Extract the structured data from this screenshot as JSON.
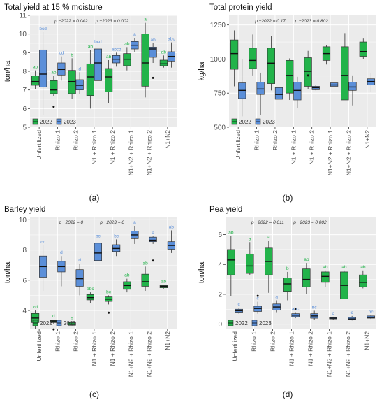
{
  "figure": {
    "colors": {
      "y2022": "#22b34a",
      "y2023": "#5b8fd9",
      "panel_bg": "#ebebeb",
      "grid": "#ffffff"
    },
    "legend": {
      "y2022": "2022",
      "y2023": "2023"
    },
    "categories": [
      "Unfertilized",
      "Rhizo 1",
      "Rhizo 2",
      "N1 + Rhizo 1",
      "N1 + Rhizo 2",
      "N1+N2 + Rhizo 1",
      "N1+N2 + Rhizo 2",
      "N1+N2"
    ]
  },
  "chart_data": [
    {
      "type": "box",
      "title": "Total yield at 15 % moisture",
      "ylabel": "ton/ha",
      "panel_label": "(a)",
      "ylim": [
        5,
        11
      ],
      "yticks": [
        5,
        6,
        7,
        8,
        9,
        10,
        11
      ],
      "pvalues": {
        "p2022": "p −2022 = 0.042",
        "p2023": "p −2023 = 0.002"
      },
      "series": [
        {
          "name": "2022",
          "boxes": [
            {
              "min": 7.05,
              "q1": 7.25,
              "median": 7.45,
              "q3": 7.75,
              "max": 8.05,
              "outliers": [],
              "letter": "ab"
            },
            {
              "min": 6.65,
              "q1": 6.8,
              "median": 7.0,
              "q3": 7.5,
              "max": 7.75,
              "outliers": [
                6.1
              ],
              "letter": "ab"
            },
            {
              "min": 6.5,
              "q1": 6.8,
              "median": 7.45,
              "q3": 8.05,
              "max": 8.7,
              "outliers": [],
              "letter": "b"
            },
            {
              "min": 6.0,
              "q1": 6.7,
              "median": 7.7,
              "q3": 8.4,
              "max": 9.15,
              "outliers": [],
              "letter": "ab"
            },
            {
              "min": 6.3,
              "q1": 6.9,
              "median": 7.7,
              "q3": 8.15,
              "max": 8.6,
              "outliers": [],
              "letter": "ab"
            },
            {
              "min": 8.05,
              "q1": 8.3,
              "median": 8.65,
              "q3": 8.95,
              "max": 9.3,
              "outliers": [],
              "letter": "ab"
            },
            {
              "min": 6.6,
              "q1": 7.2,
              "median": 8.45,
              "q3": 10.0,
              "max": 10.6,
              "outliers": [],
              "letter": "a"
            },
            {
              "min": 8.2,
              "q1": 8.3,
              "median": 8.4,
              "q3": 8.6,
              "max": 8.85,
              "outliers": [],
              "letter": "ab"
            }
          ]
        },
        {
          "name": "2023",
          "boxes": [
            {
              "min": 5.65,
              "q1": 7.15,
              "median": 7.85,
              "q3": 9.15,
              "max": 10.1,
              "outliers": [],
              "letter": "bcd"
            },
            {
              "min": 7.5,
              "q1": 7.8,
              "median": 8.1,
              "q3": 8.45,
              "max": 8.8,
              "outliers": [],
              "letter": "cd"
            },
            {
              "min": 6.8,
              "q1": 7.0,
              "median": 7.25,
              "q3": 7.55,
              "max": 7.95,
              "outliers": [],
              "letter": "d"
            },
            {
              "min": 7.2,
              "q1": 7.5,
              "median": 8.45,
              "q3": 9.2,
              "max": 9.4,
              "outliers": [],
              "letter": "bcd"
            },
            {
              "min": 8.25,
              "q1": 8.45,
              "median": 8.65,
              "q3": 8.85,
              "max": 9.0,
              "outliers": [],
              "letter": "abcd"
            },
            {
              "min": 9.05,
              "q1": 9.2,
              "median": 9.4,
              "q3": 9.6,
              "max": 9.8,
              "outliers": [],
              "letter": "a"
            },
            {
              "min": 8.45,
              "q1": 8.75,
              "median": 9.2,
              "q3": 9.3,
              "max": 9.5,
              "outliers": [
                7.65
              ],
              "letter": "ab"
            },
            {
              "min": 8.2,
              "q1": 8.55,
              "median": 8.8,
              "q3": 9.05,
              "max": 9.55,
              "outliers": [],
              "letter": "abc"
            }
          ]
        }
      ]
    },
    {
      "type": "box",
      "title": "Total protein yield",
      "ylabel": "kg/ha",
      "panel_label": "(b)",
      "ylim": [
        500,
        1320
      ],
      "yticks": [
        500,
        750,
        1000,
        1250
      ],
      "pvalues": {
        "p2022": "p −2022 = 0.17",
        "p2023": "p −2023 = 0.802"
      },
      "series": [
        {
          "name": "2022",
          "boxes": [
            {
              "min": 800,
              "q1": 925,
              "median": 1040,
              "q3": 1140,
              "max": 1210,
              "outliers": [],
              "letter": ""
            },
            {
              "min": 880,
              "q1": 930,
              "median": 990,
              "q3": 1080,
              "max": 1180,
              "outliers": [],
              "letter": ""
            },
            {
              "min": 770,
              "q1": 820,
              "median": 970,
              "q3": 1080,
              "max": 1170,
              "outliers": [],
              "letter": ""
            },
            {
              "min": 700,
              "q1": 750,
              "median": 880,
              "q3": 990,
              "max": 1005,
              "outliers": [],
              "letter": ""
            },
            {
              "min": 780,
              "q1": 800,
              "median": 910,
              "q3": 1010,
              "max": 1060,
              "outliers": [
                880
              ],
              "letter": ""
            },
            {
              "min": 960,
              "q1": 990,
              "median": 1040,
              "q3": 1090,
              "max": 1100,
              "outliers": [],
              "letter": ""
            },
            {
              "min": 700,
              "q1": 700,
              "median": 880,
              "q3": 1090,
              "max": 1190,
              "outliers": [],
              "letter": ""
            },
            {
              "min": 1000,
              "q1": 1020,
              "median": 1055,
              "q3": 1125,
              "max": 1150,
              "outliers": [],
              "letter": ""
            }
          ]
        },
        {
          "name": "2023",
          "boxes": [
            {
              "min": 580,
              "q1": 710,
              "median": 770,
              "q3": 825,
              "max": 1000,
              "outliers": [],
              "letter": ""
            },
            {
              "min": 590,
              "q1": 740,
              "median": 780,
              "q3": 830,
              "max": 900,
              "outliers": [],
              "letter": ""
            },
            {
              "min": 690,
              "q1": 705,
              "median": 740,
              "q3": 790,
              "max": 850,
              "outliers": [],
              "letter": ""
            },
            {
              "min": 640,
              "q1": 700,
              "median": 770,
              "q3": 830,
              "max": 870,
              "outliers": [],
              "letter": ""
            },
            {
              "min": 770,
              "q1": 775,
              "median": 790,
              "q3": 800,
              "max": 810,
              "outliers": [],
              "letter": ""
            },
            {
              "min": 795,
              "q1": 800,
              "median": 810,
              "q3": 825,
              "max": 830,
              "outliers": [],
              "letter": ""
            },
            {
              "min": 660,
              "q1": 770,
              "median": 795,
              "q3": 830,
              "max": 880,
              "outliers": [],
              "letter": ""
            },
            {
              "min": 760,
              "q1": 810,
              "median": 835,
              "q3": 855,
              "max": 900,
              "outliers": [],
              "letter": ""
            }
          ]
        }
      ]
    },
    {
      "type": "box",
      "title": "Barley yield",
      "ylabel": "ton/ha",
      "panel_label": "(c)",
      "ylim": [
        2.8,
        10.2
      ],
      "yticks": [
        4,
        6,
        8,
        10
      ],
      "pvalues": {
        "p2022": "p −2022 = 0",
        "p2023": "p −2023 = 0"
      },
      "series": [
        {
          "name": "2022",
          "boxes": [
            {
              "min": 2.8,
              "q1": 3.2,
              "median": 3.5,
              "q3": 3.8,
              "max": 4.0,
              "outliers": [],
              "letter": "cd"
            },
            {
              "min": 3.1,
              "q1": 3.2,
              "median": 3.3,
              "q3": 3.35,
              "max": 3.4,
              "outliers": [
                2.75
              ],
              "letter": "d"
            },
            {
              "min": 3.0,
              "q1": 3.02,
              "median": 3.1,
              "q3": 3.2,
              "max": 3.25,
              "outliers": [],
              "letter": "d"
            },
            {
              "min": 4.5,
              "q1": 4.7,
              "median": 4.85,
              "q3": 5.05,
              "max": 5.2,
              "outliers": [],
              "letter": "abc"
            },
            {
              "min": 4.4,
              "q1": 4.6,
              "median": 4.75,
              "q3": 4.9,
              "max": 5.0,
              "outliers": [
                3.85
              ],
              "letter": "bc"
            },
            {
              "min": 5.2,
              "q1": 5.4,
              "median": 5.65,
              "q3": 5.9,
              "max": 6.1,
              "outliers": [],
              "letter": "ab"
            },
            {
              "min": 5.3,
              "q1": 5.6,
              "median": 5.9,
              "q3": 6.4,
              "max": 6.9,
              "outliers": [],
              "letter": "ab"
            },
            {
              "min": 5.45,
              "q1": 5.5,
              "median": 5.6,
              "q3": 5.65,
              "max": 5.7,
              "outliers": [],
              "letter": "ab"
            }
          ]
        },
        {
          "name": "2023",
          "boxes": [
            {
              "min": 5.3,
              "q1": 6.2,
              "median": 6.9,
              "q3": 7.6,
              "max": 8.3,
              "outliers": [],
              "letter": "cd"
            },
            {
              "min": 5.6,
              "q1": 6.55,
              "median": 6.9,
              "q3": 7.25,
              "max": 7.6,
              "outliers": [],
              "letter": "d"
            },
            {
              "min": 5.0,
              "q1": 5.6,
              "median": 6.1,
              "q3": 6.7,
              "max": 7.1,
              "outliers": [],
              "letter": "d"
            },
            {
              "min": 6.6,
              "q1": 7.3,
              "median": 7.8,
              "q3": 8.45,
              "max": 8.7,
              "outliers": [],
              "letter": "bc"
            },
            {
              "min": 7.6,
              "q1": 7.9,
              "median": 8.1,
              "q3": 8.35,
              "max": 8.7,
              "outliers": [],
              "letter": "bc"
            },
            {
              "min": 8.4,
              "q1": 8.75,
              "median": 9.0,
              "q3": 9.25,
              "max": 9.6,
              "outliers": [],
              "letter": "a"
            },
            {
              "min": 8.4,
              "q1": 8.55,
              "median": 8.65,
              "q3": 8.85,
              "max": 8.9,
              "outliers": [
                7.3
              ],
              "letter": "a"
            },
            {
              "min": 7.8,
              "q1": 8.05,
              "median": 8.3,
              "q3": 8.55,
              "max": 9.3,
              "outliers": [],
              "letter": "ab"
            }
          ]
        }
      ]
    },
    {
      "type": "box",
      "title": "Pea yield",
      "ylabel": "ton/ha",
      "panel_label": "(d)",
      "ylim": [
        -0.3,
        7.2
      ],
      "yticks": [
        0,
        2,
        4,
        6
      ],
      "pvalues": {
        "p2022": "p −2022 = 0.011",
        "p2023": "p −2023 = 0.002"
      },
      "series": [
        {
          "name": "2022",
          "boxes": [
            {
              "min": 1.9,
              "q1": 3.3,
              "median": 4.3,
              "q3": 5.0,
              "max": 5.9,
              "outliers": [],
              "letter": "ab"
            },
            {
              "min": 3.3,
              "q1": 3.4,
              "median": 3.9,
              "q3": 4.7,
              "max": 5.5,
              "outliers": [],
              "letter": "a"
            },
            {
              "min": 2.1,
              "q1": 3.3,
              "median": 4.2,
              "q3": 5.1,
              "max": 5.6,
              "outliers": [],
              "letter": "a"
            },
            {
              "min": 1.6,
              "q1": 2.2,
              "median": 2.7,
              "q3": 3.1,
              "max": 3.5,
              "outliers": [],
              "letter": "b"
            },
            {
              "min": 2.0,
              "q1": 2.5,
              "median": 3.0,
              "q3": 3.7,
              "max": 4.1,
              "outliers": [],
              "letter": "ab"
            },
            {
              "min": 2.5,
              "q1": 2.8,
              "median": 3.2,
              "q3": 3.5,
              "max": 3.6,
              "outliers": [],
              "letter": "ab"
            },
            {
              "min": 1.7,
              "q1": 1.7,
              "median": 2.6,
              "q3": 3.5,
              "max": 3.6,
              "outliers": [],
              "letter": "ab"
            },
            {
              "min": 2.4,
              "q1": 2.5,
              "median": 2.8,
              "q3": 3.3,
              "max": 3.6,
              "outliers": [],
              "letter": "ab"
            }
          ]
        },
        {
          "name": "2023",
          "boxes": [
            {
              "min": 0.7,
              "q1": 0.8,
              "median": 0.9,
              "q3": 1.0,
              "max": 1.1,
              "outliers": [],
              "letter": "c"
            },
            {
              "min": 0.7,
              "q1": 0.85,
              "median": 1.05,
              "q3": 1.2,
              "max": 1.5,
              "outliers": [
                1.9
              ],
              "letter": "c"
            },
            {
              "min": 0.8,
              "q1": 0.95,
              "median": 1.15,
              "q3": 1.35,
              "max": 1.6,
              "outliers": [],
              "letter": "a"
            },
            {
              "min": 0.4,
              "q1": 0.5,
              "median": 0.6,
              "q3": 0.7,
              "max": 0.8,
              "outliers": [
                1.0
              ],
              "letter": "abc"
            },
            {
              "min": 0.3,
              "q1": 0.4,
              "median": 0.55,
              "q3": 0.7,
              "max": 0.9,
              "outliers": [],
              "letter": "bc"
            },
            {
              "min": 0.3,
              "q1": 0.35,
              "median": 0.4,
              "q3": 0.45,
              "max": 0.5,
              "outliers": [],
              "letter": "c"
            },
            {
              "min": 0.25,
              "q1": 0.3,
              "median": 0.35,
              "q3": 0.45,
              "max": 0.55,
              "outliers": [],
              "letter": "c"
            },
            {
              "min": 0.35,
              "q1": 0.4,
              "median": 0.45,
              "q3": 0.55,
              "max": 0.6,
              "outliers": [],
              "letter": "bc"
            }
          ]
        }
      ]
    }
  ]
}
